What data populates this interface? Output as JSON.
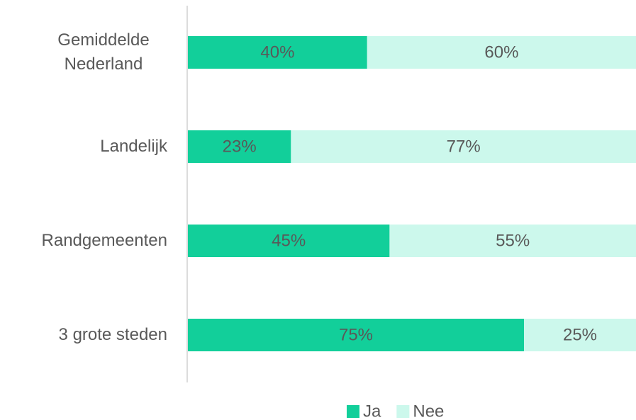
{
  "chart_data": {
    "type": "stacked-bar-horizontal",
    "categories": [
      "Gemiddelde Nederland",
      "Landelijk",
      "Randgemeenten",
      "3 grote steden"
    ],
    "series": [
      {
        "name": "Ja",
        "color": "#12cf9a",
        "values": [
          40,
          23,
          45,
          75
        ],
        "value_labels": [
          "40%",
          "23%",
          "45%",
          "75%"
        ]
      },
      {
        "name": "Nee",
        "color": "#ccf8ec",
        "values": [
          60,
          77,
          55,
          25
        ],
        "value_labels": [
          "60%",
          "77%",
          "55%",
          "25%"
        ]
      }
    ],
    "legend": "bottom"
  }
}
